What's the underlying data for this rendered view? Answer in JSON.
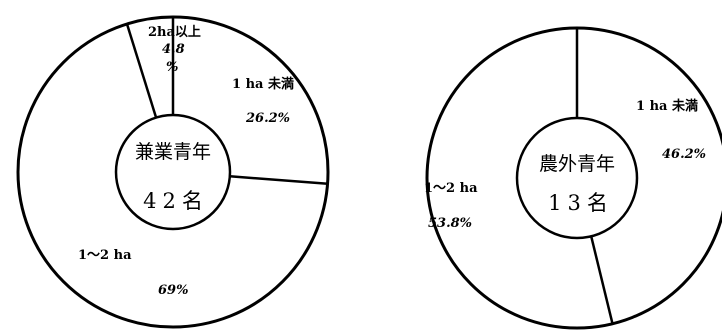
{
  "chart_data": [
    {
      "type": "pie",
      "variant": "donut",
      "center_title": "兼業青年",
      "center_count": "42名",
      "start_angle_deg": 0,
      "direction": "clockwise",
      "slices": [
        {
          "label": "1 ha 未満",
          "value_text": "26.2%",
          "value": 26.2
        },
        {
          "label": "1～2 ha",
          "value_text": "69%",
          "value": 69
        },
        {
          "label": "2ha以上",
          "value_text": "4.8 %",
          "value": 4.8
        }
      ]
    },
    {
      "type": "pie",
      "variant": "donut",
      "center_title": "農外青年",
      "center_count": "13名",
      "start_angle_deg": 0,
      "direction": "clockwise",
      "slices": [
        {
          "label": "1 ha 未満",
          "value_text": "46.2%",
          "value": 46.2
        },
        {
          "label": "1～2 ha",
          "value_text": "53.8%",
          "value": 53.8
        }
      ]
    }
  ]
}
